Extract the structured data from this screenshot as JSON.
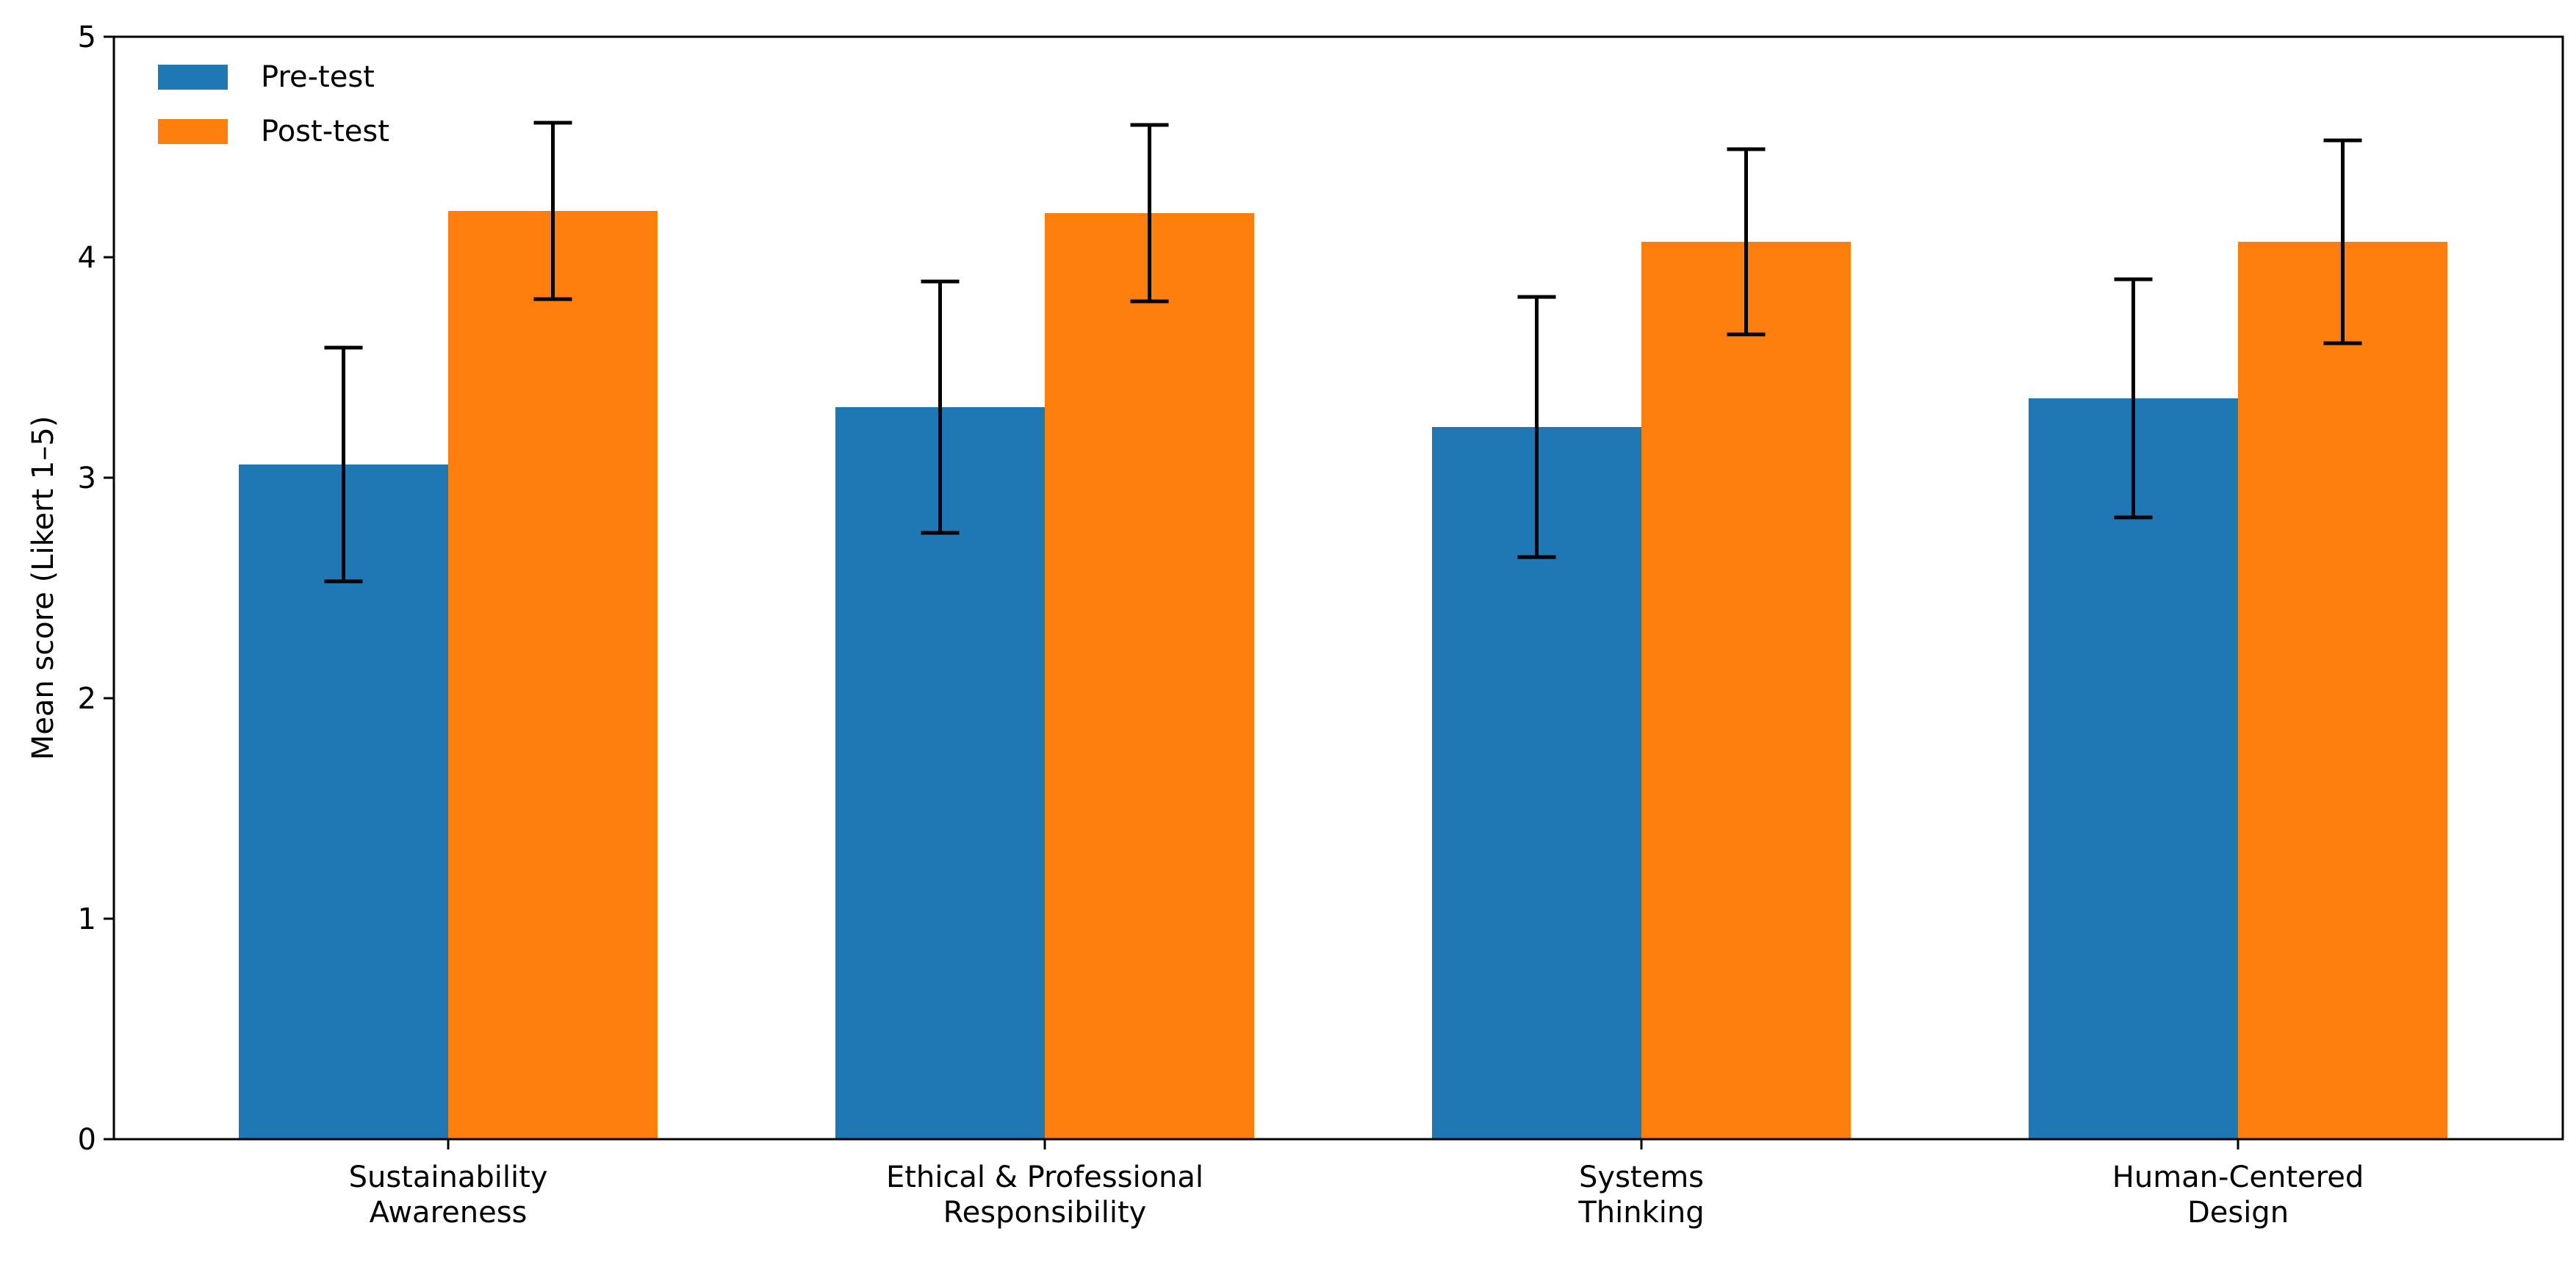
{
  "chart_data": {
    "type": "bar",
    "title": "",
    "xlabel": "",
    "ylabel": "Mean score (Likert 1–5)",
    "ylim": [
      0,
      5
    ],
    "yticks": [
      "0",
      "1",
      "2",
      "3",
      "4",
      "5"
    ],
    "categories": [
      [
        "Sustainability",
        "Awareness"
      ],
      [
        "Ethical & Professional",
        "Responsibility"
      ],
      [
        "Systems",
        "Thinking"
      ],
      [
        "Human-Centered",
        "Design"
      ]
    ],
    "series": [
      {
        "name": "Pre-test",
        "color": "#1f77b4",
        "values": [
          3.06,
          3.32,
          3.23,
          3.36
        ],
        "errors": [
          0.53,
          0.57,
          0.59,
          0.54
        ]
      },
      {
        "name": "Post-test",
        "color": "#ff7f0e",
        "values": [
          4.21,
          4.2,
          4.07,
          4.07
        ],
        "errors": [
          0.4,
          0.4,
          0.42,
          0.46
        ]
      }
    ],
    "legend": {
      "position": "top-left",
      "entries": [
        "Pre-test",
        "Post-test"
      ]
    },
    "grid": false
  }
}
